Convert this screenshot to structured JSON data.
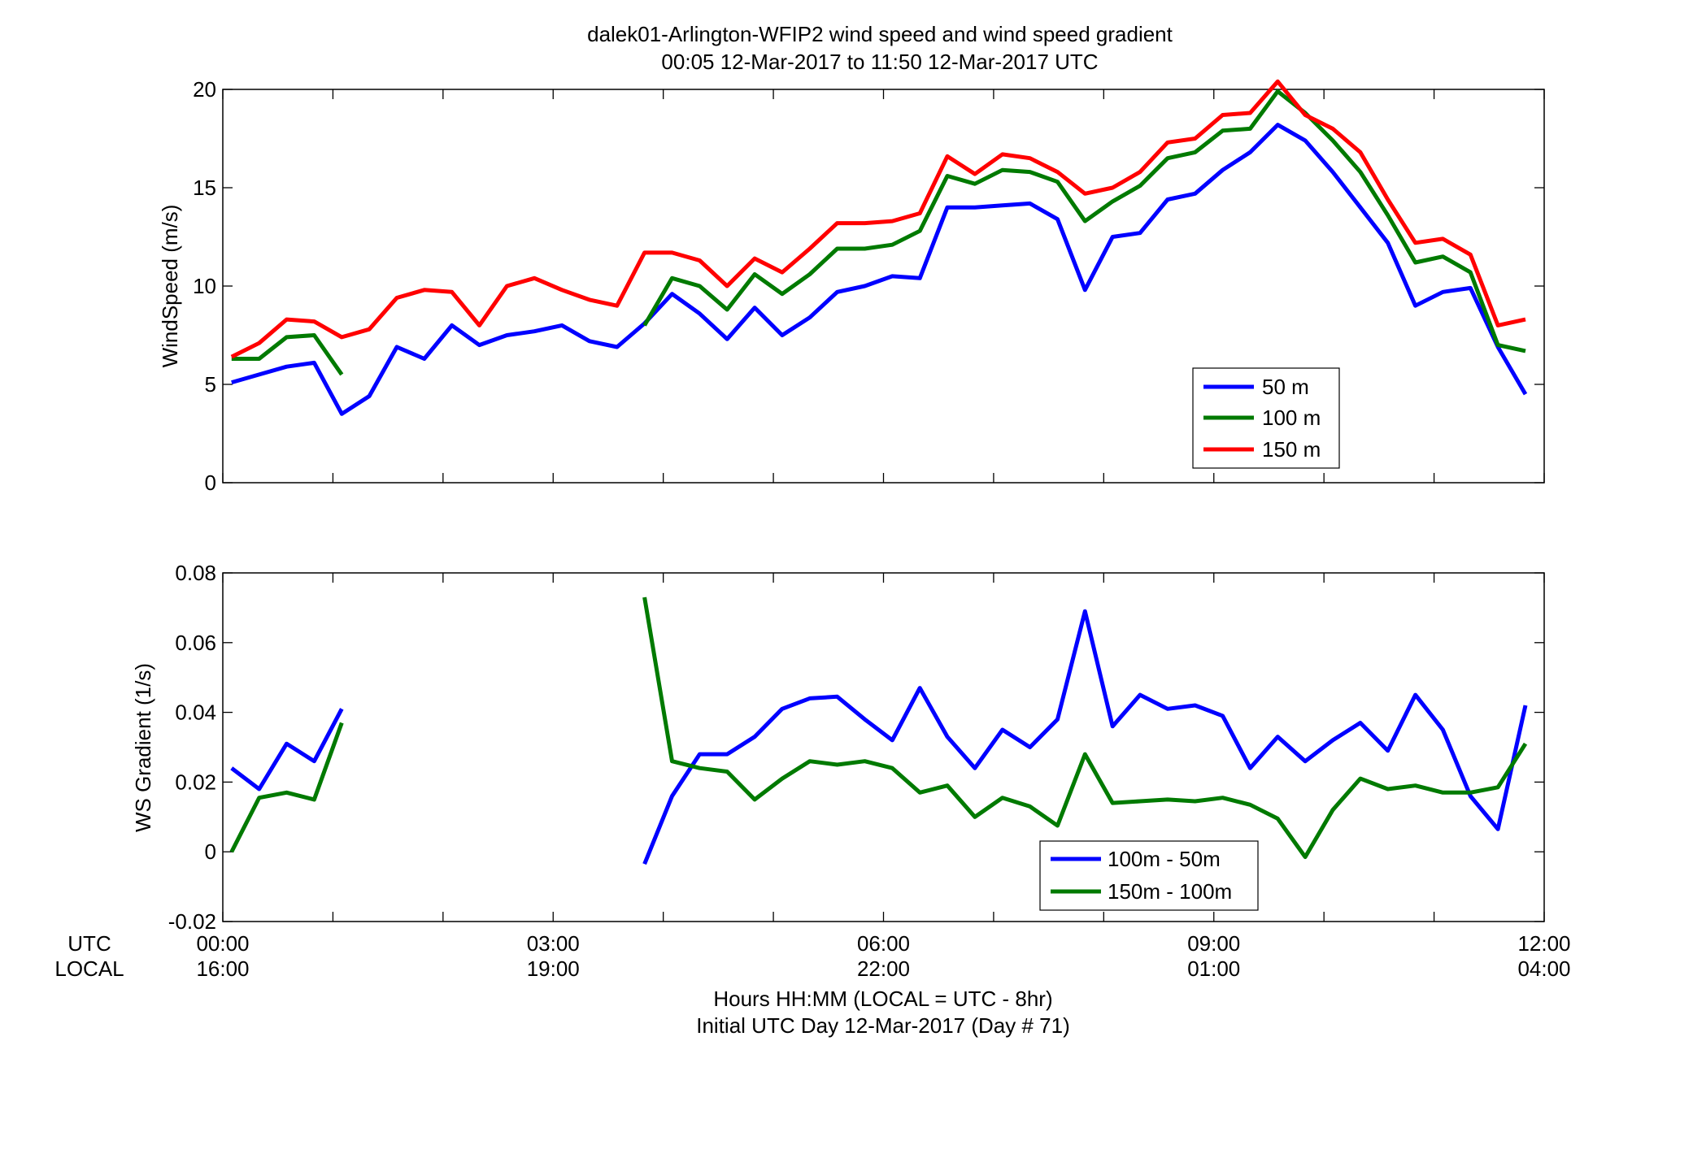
{
  "title_line1": "dalek01-Arlington-WFIP2  wind speed and wind speed gradient",
  "title_line2": "00:05 12-Mar-2017 to 11:50 12-Mar-2017  UTC",
  "xaxis": {
    "utc_row_label": "UTC",
    "local_row_label": "LOCAL",
    "utc_ticks": [
      "00:00",
      "03:00",
      "06:00",
      "09:00",
      "12:00"
    ],
    "local_ticks": [
      "16:00",
      "19:00",
      "22:00",
      "01:00",
      "04:00"
    ],
    "label_line1": "Hours HH:MM  (LOCAL = UTC - 8hr)",
    "label_line2": "Initial UTC Day 12-Mar-2017 (Day # 71)"
  },
  "chart_data": [
    {
      "type": "line",
      "ylabel": "WindSpeed (m/s)",
      "xlim": [
        0,
        12
      ],
      "ylim": [
        0,
        20
      ],
      "yticks": [
        "0",
        "5",
        "10",
        "15",
        "20"
      ],
      "legend_position": "bottom-right",
      "series": [
        {
          "name": "50 m",
          "color": "#0000ff",
          "points": [
            [
              0.08,
              5.1
            ],
            [
              0.33,
              5.5
            ],
            [
              0.58,
              5.9
            ],
            [
              0.83,
              6.1
            ],
            [
              1.08,
              3.5
            ],
            [
              1.33,
              4.4
            ],
            [
              1.58,
              6.9
            ],
            [
              1.83,
              6.3
            ],
            [
              2.08,
              8.0
            ],
            [
              2.33,
              7.0
            ],
            [
              2.58,
              7.5
            ],
            [
              2.83,
              7.7
            ],
            [
              3.08,
              8.0
            ],
            [
              3.33,
              7.2
            ],
            [
              3.58,
              6.9
            ],
            [
              3.83,
              8.1
            ],
            [
              4.08,
              9.6
            ],
            [
              4.33,
              8.6
            ],
            [
              4.58,
              7.3
            ],
            [
              4.83,
              8.9
            ],
            [
              5.08,
              7.5
            ],
            [
              5.33,
              8.4
            ],
            [
              5.58,
              9.7
            ],
            [
              5.83,
              10.0
            ],
            [
              6.08,
              10.5
            ],
            [
              6.33,
              10.4
            ],
            [
              6.58,
              14.0
            ],
            [
              6.83,
              14.0
            ],
            [
              7.08,
              14.1
            ],
            [
              7.33,
              14.2
            ],
            [
              7.58,
              13.4
            ],
            [
              7.83,
              9.8
            ],
            [
              8.08,
              12.5
            ],
            [
              8.33,
              12.7
            ],
            [
              8.58,
              14.4
            ],
            [
              8.83,
              14.7
            ],
            [
              9.08,
              15.9
            ],
            [
              9.33,
              16.8
            ],
            [
              9.58,
              18.2
            ],
            [
              9.83,
              17.4
            ],
            [
              10.08,
              15.8
            ],
            [
              10.33,
              14.0
            ],
            [
              10.58,
              12.2
            ],
            [
              10.83,
              9.0
            ],
            [
              11.08,
              9.7
            ],
            [
              11.33,
              9.9
            ],
            [
              11.58,
              6.9
            ],
            [
              11.83,
              4.5
            ]
          ]
        },
        {
          "name": "100 m",
          "color": "#007a00",
          "points": [
            [
              0.08,
              6.3
            ],
            [
              0.33,
              6.3
            ],
            [
              0.58,
              7.4
            ],
            [
              0.83,
              7.5
            ],
            [
              1.08,
              5.5
            ],
            null,
            [
              3.83,
              8.0
            ],
            [
              4.08,
              10.4
            ],
            [
              4.33,
              10.0
            ],
            [
              4.58,
              8.8
            ],
            [
              4.83,
              10.6
            ],
            [
              5.08,
              9.6
            ],
            [
              5.33,
              10.6
            ],
            [
              5.58,
              11.9
            ],
            [
              5.83,
              11.9
            ],
            [
              6.08,
              12.1
            ],
            [
              6.33,
              12.8
            ],
            [
              6.58,
              15.6
            ],
            [
              6.83,
              15.2
            ],
            [
              7.08,
              15.9
            ],
            [
              7.33,
              15.8
            ],
            [
              7.58,
              15.3
            ],
            [
              7.83,
              13.3
            ],
            [
              8.08,
              14.3
            ],
            [
              8.33,
              15.1
            ],
            [
              8.58,
              16.5
            ],
            [
              8.83,
              16.8
            ],
            [
              9.08,
              17.9
            ],
            [
              9.33,
              18.0
            ],
            [
              9.58,
              19.9
            ],
            [
              9.83,
              18.8
            ],
            [
              10.08,
              17.4
            ],
            [
              10.33,
              15.8
            ],
            [
              10.58,
              13.6
            ],
            [
              10.83,
              11.2
            ],
            [
              11.08,
              11.5
            ],
            [
              11.33,
              10.7
            ],
            [
              11.58,
              7.0
            ],
            [
              11.83,
              6.7
            ]
          ]
        },
        {
          "name": "150 m",
          "color": "#ff0000",
          "points": [
            [
              0.08,
              6.4
            ],
            [
              0.33,
              7.1
            ],
            [
              0.58,
              8.3
            ],
            [
              0.83,
              8.2
            ],
            [
              1.08,
              7.4
            ],
            [
              1.33,
              7.8
            ],
            [
              1.58,
              9.4
            ],
            [
              1.83,
              9.8
            ],
            [
              2.08,
              9.7
            ],
            [
              2.33,
              8.0
            ],
            [
              2.58,
              10.0
            ],
            [
              2.83,
              10.4
            ],
            [
              3.08,
              9.8
            ],
            [
              3.33,
              9.3
            ],
            [
              3.58,
              9.0
            ],
            [
              3.83,
              11.7
            ],
            [
              4.08,
              11.7
            ],
            [
              4.33,
              11.3
            ],
            [
              4.58,
              10.0
            ],
            [
              4.83,
              11.4
            ],
            [
              5.08,
              10.7
            ],
            [
              5.33,
              11.9
            ],
            [
              5.58,
              13.2
            ],
            [
              5.83,
              13.2
            ],
            [
              6.08,
              13.3
            ],
            [
              6.33,
              13.7
            ],
            [
              6.58,
              16.6
            ],
            [
              6.83,
              15.7
            ],
            [
              7.08,
              16.7
            ],
            [
              7.33,
              16.5
            ],
            [
              7.58,
              15.8
            ],
            [
              7.83,
              14.7
            ],
            [
              8.08,
              15.0
            ],
            [
              8.33,
              15.8
            ],
            [
              8.58,
              17.3
            ],
            [
              8.83,
              17.5
            ],
            [
              9.08,
              18.7
            ],
            [
              9.33,
              18.8
            ],
            [
              9.58,
              20.4
            ],
            [
              9.83,
              18.7
            ],
            [
              10.08,
              18.0
            ],
            [
              10.33,
              16.8
            ],
            [
              10.58,
              14.4
            ],
            [
              10.83,
              12.2
            ],
            [
              11.08,
              12.4
            ],
            [
              11.33,
              11.6
            ],
            [
              11.58,
              8.0
            ],
            [
              11.83,
              8.3
            ]
          ]
        }
      ]
    },
    {
      "type": "line",
      "ylabel": "WS Gradient (1/s)",
      "xlim": [
        0,
        12
      ],
      "ylim": [
        -0.02,
        0.08
      ],
      "yticks": [
        "-0.02",
        "0",
        "0.02",
        "0.04",
        "0.06",
        "0.08"
      ],
      "legend_position": "bottom-right",
      "series": [
        {
          "name": "100m - 50m",
          "color": "#0000ff",
          "points": [
            [
              0.08,
              0.024
            ],
            [
              0.33,
              0.018
            ],
            [
              0.58,
              0.031
            ],
            [
              0.83,
              0.026
            ],
            [
              1.08,
              0.041
            ],
            null,
            [
              3.83,
              -0.0035
            ],
            [
              4.08,
              0.016
            ],
            [
              4.33,
              0.028
            ],
            [
              4.58,
              0.028
            ],
            [
              4.83,
              0.033
            ],
            [
              5.08,
              0.041
            ],
            [
              5.33,
              0.044
            ],
            [
              5.58,
              0.0445
            ],
            [
              5.83,
              0.038
            ],
            [
              6.08,
              0.032
            ],
            [
              6.33,
              0.047
            ],
            [
              6.58,
              0.033
            ],
            [
              6.83,
              0.024
            ],
            [
              7.08,
              0.035
            ],
            [
              7.33,
              0.03
            ],
            [
              7.58,
              0.038
            ],
            [
              7.83,
              0.069
            ],
            [
              8.08,
              0.036
            ],
            [
              8.33,
              0.045
            ],
            [
              8.58,
              0.041
            ],
            [
              8.83,
              0.042
            ],
            [
              9.08,
              0.039
            ],
            [
              9.33,
              0.024
            ],
            [
              9.58,
              0.033
            ],
            [
              9.83,
              0.026
            ],
            [
              10.08,
              0.032
            ],
            [
              10.33,
              0.037
            ],
            [
              10.58,
              0.029
            ],
            [
              10.83,
              0.045
            ],
            [
              11.08,
              0.035
            ],
            [
              11.33,
              0.016
            ],
            [
              11.58,
              0.0065
            ],
            [
              11.83,
              0.042
            ]
          ]
        },
        {
          "name": "150m - 100m",
          "color": "#007a00",
          "points": [
            [
              0.08,
              0.0
            ],
            [
              0.33,
              0.0155
            ],
            [
              0.58,
              0.017
            ],
            [
              0.83,
              0.015
            ],
            [
              1.08,
              0.037
            ],
            null,
            [
              3.83,
              0.073
            ],
            [
              4.08,
              0.026
            ],
            [
              4.33,
              0.024
            ],
            [
              4.58,
              0.023
            ],
            [
              4.83,
              0.015
            ],
            [
              5.08,
              0.021
            ],
            [
              5.33,
              0.026
            ],
            [
              5.58,
              0.025
            ],
            [
              5.83,
              0.026
            ],
            [
              6.08,
              0.024
            ],
            [
              6.33,
              0.017
            ],
            [
              6.58,
              0.019
            ],
            [
              6.83,
              0.01
            ],
            [
              7.08,
              0.0155
            ],
            [
              7.33,
              0.013
            ],
            [
              7.58,
              0.0075
            ],
            [
              7.83,
              0.028
            ],
            [
              8.08,
              0.014
            ],
            [
              8.33,
              0.0145
            ],
            [
              8.58,
              0.015
            ],
            [
              8.83,
              0.0145
            ],
            [
              9.08,
              0.0155
            ],
            [
              9.33,
              0.0135
            ],
            [
              9.58,
              0.0095
            ],
            [
              9.83,
              -0.0015
            ],
            [
              10.08,
              0.012
            ],
            [
              10.33,
              0.021
            ],
            [
              10.58,
              0.018
            ],
            [
              10.83,
              0.019
            ],
            [
              11.08,
              0.017
            ],
            [
              11.33,
              0.017
            ],
            [
              11.58,
              0.0185
            ],
            [
              11.83,
              0.031
            ]
          ]
        }
      ]
    }
  ]
}
